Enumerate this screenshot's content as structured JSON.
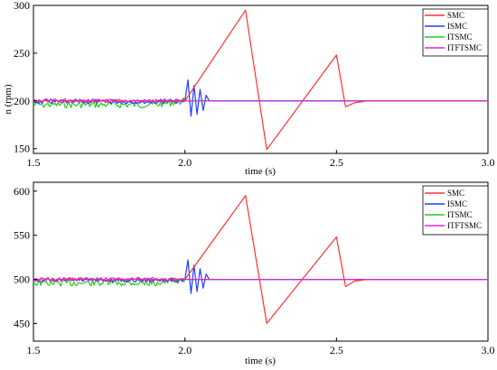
{
  "chart_data": [
    {
      "type": "line",
      "title": "",
      "xlabel": "time (s)",
      "ylabel": "n (rpm)",
      "xlim": [
        1.5,
        3.0
      ],
      "ylim": [
        145,
        300
      ],
      "xticks": [
        1.5,
        2.0,
        2.5,
        3.0
      ],
      "xtick_labels": [
        "1.5",
        "2.0",
        "2.5",
        "3.0"
      ],
      "yticks": [
        150,
        200,
        250,
        300
      ],
      "ytick_labels": [
        "150",
        "200",
        "250",
        "300"
      ],
      "grid": false,
      "legend_position": "top-right",
      "series": [
        {
          "name": "SMC",
          "color": "#ff3030",
          "x": [
            1.5,
            2.0,
            2.2,
            2.27,
            2.5,
            2.53,
            2.56,
            2.6,
            3.0
          ],
          "y": [
            200,
            200,
            295,
            149,
            248,
            194,
            198,
            200,
            200
          ]
        },
        {
          "name": "ISMC",
          "color": "#1f3fff",
          "x": [
            1.5,
            1.98,
            2.0,
            2.01,
            2.02,
            2.03,
            2.04,
            2.05,
            2.06,
            2.07,
            2.08,
            3.0
          ],
          "y": [
            199,
            199,
            200,
            222,
            184,
            216,
            186,
            212,
            190,
            206,
            200,
            200
          ]
        },
        {
          "name": "ITSMC",
          "color": "#22cc22",
          "x": [
            1.5,
            1.6,
            1.7,
            1.8,
            1.9,
            2.0,
            2.05,
            3.0
          ],
          "y": [
            196,
            196,
            196,
            196,
            196,
            200,
            200,
            200
          ]
        },
        {
          "name": "ITFTSMC",
          "color": "#dd22dd",
          "x": [
            1.5,
            2.0,
            3.0
          ],
          "y": [
            200,
            200,
            200
          ]
        }
      ]
    },
    {
      "type": "line",
      "title": "",
      "xlabel": "time (s)",
      "ylabel": "",
      "xlim": [
        1.5,
        3.0
      ],
      "ylim": [
        430,
        610
      ],
      "xticks": [
        1.5,
        2.0,
        2.5,
        3.0
      ],
      "xtick_labels": [
        "1.5",
        "2.0",
        "2.5",
        "3.0"
      ],
      "yticks": [
        450,
        500,
        550,
        600
      ],
      "ytick_labels": [
        "450",
        "500",
        "550",
        "600"
      ],
      "grid": false,
      "legend_position": "top-right",
      "series": [
        {
          "name": "SMC",
          "color": "#ff3030",
          "x": [
            1.5,
            2.0,
            2.2,
            2.27,
            2.5,
            2.53,
            2.56,
            2.6,
            3.0
          ],
          "y": [
            500,
            500,
            595,
            450,
            548,
            492,
            498,
            500,
            500
          ]
        },
        {
          "name": "ISMC",
          "color": "#1f3fff",
          "x": [
            1.5,
            1.98,
            2.0,
            2.01,
            2.02,
            2.03,
            2.04,
            2.05,
            2.06,
            2.07,
            2.08,
            3.0
          ],
          "y": [
            499,
            499,
            500,
            522,
            484,
            516,
            486,
            512,
            490,
            506,
            500,
            500
          ]
        },
        {
          "name": "ITSMC",
          "color": "#22cc22",
          "x": [
            1.5,
            1.6,
            1.7,
            1.8,
            1.9,
            2.0,
            2.05,
            3.0
          ],
          "y": [
            496,
            496,
            496,
            496,
            496,
            500,
            500,
            500
          ]
        },
        {
          "name": "ITFTSMC",
          "color": "#dd22dd",
          "x": [
            1.5,
            2.0,
            3.0
          ],
          "y": [
            500,
            500,
            500
          ]
        }
      ]
    }
  ]
}
